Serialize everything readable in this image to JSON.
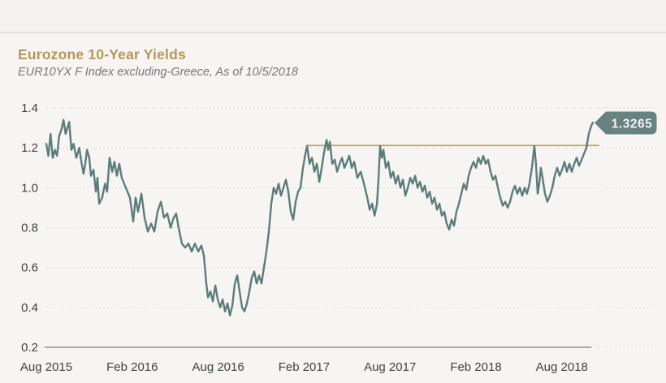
{
  "header": {
    "title": "Eurozone 10-Year Yields",
    "subtitle": "EUR10YX F Index excluding-Greece, As of 10/5/2018",
    "title_color": "#b5975a"
  },
  "chart_data": {
    "type": "line",
    "title": "Eurozone 10-Year Yields",
    "subtitle": "EUR10YX F Index excluding-Greece, As of 10/5/2018",
    "x_unit": "months since Aug 2015",
    "xlim": [
      0,
      38.3
    ],
    "ylim": [
      0.2,
      1.45
    ],
    "grid": "horizontal-dashed",
    "legend": "none",
    "yticks": [
      1.4,
      1.2,
      1.0,
      0.8,
      0.6,
      0.4,
      0.2
    ],
    "ytick_labels": [
      "1.4",
      "1.2",
      "1.0",
      "0.8",
      "0.6",
      "0.4",
      "0.2"
    ],
    "xticks": [
      0,
      6,
      12,
      18,
      24,
      30,
      36
    ],
    "xtick_labels": [
      "Aug 2015",
      "Feb 2016",
      "Aug 2016",
      "Feb 2017",
      "Aug 2017",
      "Feb 2018",
      "Aug 2018"
    ],
    "ref_line": {
      "value": 1.212,
      "color": "#c1a04e",
      "x_start_month": 18.2,
      "x_end_month": 38.6
    },
    "annotation": {
      "label": "1.3265",
      "value": 1.3265,
      "color": "#67827f",
      "text_color": "#f4f4f2"
    },
    "last_value": 1.3265,
    "series": [
      {
        "name": "EUR10YX F Index excluding-Greece",
        "color": "#5e7c7a",
        "points": [
          [
            0.0,
            1.22
          ],
          [
            0.15,
            1.16
          ],
          [
            0.3,
            1.27
          ],
          [
            0.45,
            1.15
          ],
          [
            0.6,
            1.19
          ],
          [
            0.75,
            1.16
          ],
          [
            0.9,
            1.26
          ],
          [
            1.05,
            1.29
          ],
          [
            1.2,
            1.34
          ],
          [
            1.35,
            1.27
          ],
          [
            1.6,
            1.33
          ],
          [
            1.75,
            1.19
          ],
          [
            1.9,
            1.22
          ],
          [
            2.1,
            1.15
          ],
          [
            2.3,
            1.2
          ],
          [
            2.45,
            1.13
          ],
          [
            2.6,
            1.07
          ],
          [
            2.72,
            1.12
          ],
          [
            2.84,
            1.19
          ],
          [
            3.0,
            1.15
          ],
          [
            3.12,
            1.06
          ],
          [
            3.3,
            1.09
          ],
          [
            3.46,
            0.98
          ],
          [
            3.57,
            1.05
          ],
          [
            3.69,
            0.92
          ],
          [
            3.9,
            0.95
          ],
          [
            4.1,
            1.02
          ],
          [
            4.25,
            0.98
          ],
          [
            4.42,
            1.15
          ],
          [
            4.6,
            1.08
          ],
          [
            4.76,
            1.13
          ],
          [
            4.93,
            1.06
          ],
          [
            5.1,
            1.12
          ],
          [
            5.27,
            1.05
          ],
          [
            5.56,
            1.0
          ],
          [
            5.84,
            0.95
          ],
          [
            6.07,
            0.83
          ],
          [
            6.24,
            0.95
          ],
          [
            6.41,
            0.88
          ],
          [
            6.64,
            0.97
          ],
          [
            6.86,
            0.85
          ],
          [
            7.09,
            0.78
          ],
          [
            7.32,
            0.82
          ],
          [
            7.54,
            0.78
          ],
          [
            7.77,
            0.88
          ],
          [
            8.0,
            0.93
          ],
          [
            8.22,
            0.85
          ],
          [
            8.45,
            0.87
          ],
          [
            8.68,
            0.8
          ],
          [
            8.9,
            0.85
          ],
          [
            9.07,
            0.87
          ],
          [
            9.24,
            0.8
          ],
          [
            9.47,
            0.72
          ],
          [
            9.7,
            0.7
          ],
          [
            9.93,
            0.72
          ],
          [
            10.15,
            0.68
          ],
          [
            10.38,
            0.72
          ],
          [
            10.61,
            0.68
          ],
          [
            10.83,
            0.71
          ],
          [
            11.0,
            0.66
          ],
          [
            11.17,
            0.52
          ],
          [
            11.29,
            0.45
          ],
          [
            11.46,
            0.48
          ],
          [
            11.63,
            0.43
          ],
          [
            11.8,
            0.51
          ],
          [
            11.97,
            0.44
          ],
          [
            12.14,
            0.4
          ],
          [
            12.31,
            0.44
          ],
          [
            12.48,
            0.38
          ],
          [
            12.65,
            0.42
          ],
          [
            12.82,
            0.36
          ],
          [
            12.99,
            0.41
          ],
          [
            13.16,
            0.52
          ],
          [
            13.33,
            0.56
          ],
          [
            13.5,
            0.48
          ],
          [
            13.67,
            0.4
          ],
          [
            13.84,
            0.38
          ],
          [
            14.01,
            0.42
          ],
          [
            14.18,
            0.48
          ],
          [
            14.35,
            0.55
          ],
          [
            14.52,
            0.58
          ],
          [
            14.69,
            0.52
          ],
          [
            14.86,
            0.56
          ],
          [
            15.03,
            0.52
          ],
          [
            15.2,
            0.6
          ],
          [
            15.37,
            0.68
          ],
          [
            15.54,
            0.78
          ],
          [
            15.71,
            0.92
          ],
          [
            15.88,
            1.0
          ],
          [
            16.05,
            0.97
          ],
          [
            16.22,
            1.02
          ],
          [
            16.39,
            0.96
          ],
          [
            16.56,
            1.0
          ],
          [
            16.73,
            1.04
          ],
          [
            16.9,
            0.98
          ],
          [
            17.07,
            0.88
          ],
          [
            17.24,
            0.84
          ],
          [
            17.41,
            0.93
          ],
          [
            17.58,
            0.98
          ],
          [
            17.75,
            1.0
          ],
          [
            17.92,
            1.1
          ],
          [
            18.09,
            1.17
          ],
          [
            18.21,
            1.21
          ],
          [
            18.38,
            1.12
          ],
          [
            18.55,
            1.15
          ],
          [
            18.72,
            1.08
          ],
          [
            18.89,
            1.12
          ],
          [
            19.06,
            1.03
          ],
          [
            19.23,
            1.1
          ],
          [
            19.4,
            1.18
          ],
          [
            19.57,
            1.24
          ],
          [
            19.68,
            1.19
          ],
          [
            19.8,
            1.23
          ],
          [
            19.97,
            1.12
          ],
          [
            20.14,
            1.14
          ],
          [
            20.31,
            1.08
          ],
          [
            20.48,
            1.12
          ],
          [
            20.65,
            1.15
          ],
          [
            20.82,
            1.1
          ],
          [
            20.99,
            1.13
          ],
          [
            21.16,
            1.16
          ],
          [
            21.33,
            1.1
          ],
          [
            21.5,
            1.13
          ],
          [
            21.72,
            1.05
          ],
          [
            21.95,
            1.08
          ],
          [
            22.18,
            1.02
          ],
          [
            22.41,
            0.95
          ],
          [
            22.58,
            0.89
          ],
          [
            22.75,
            0.92
          ],
          [
            22.92,
            0.86
          ],
          [
            23.09,
            0.92
          ],
          [
            23.2,
            1.05
          ],
          [
            23.31,
            1.21
          ],
          [
            23.43,
            1.15
          ],
          [
            23.54,
            1.19
          ],
          [
            23.71,
            1.1
          ],
          [
            23.88,
            1.13
          ],
          [
            24.05,
            1.05
          ],
          [
            24.22,
            1.08
          ],
          [
            24.39,
            1.02
          ],
          [
            24.56,
            1.06
          ],
          [
            24.73,
            1.0
          ],
          [
            24.9,
            1.04
          ],
          [
            25.07,
            0.96
          ],
          [
            25.24,
            1.0
          ],
          [
            25.41,
            1.05
          ],
          [
            25.58,
            1.02
          ],
          [
            25.75,
            1.06
          ],
          [
            25.92,
            1.0
          ],
          [
            26.09,
            1.03
          ],
          [
            26.26,
            0.98
          ],
          [
            26.43,
            1.01
          ],
          [
            26.6,
            0.95
          ],
          [
            26.77,
            0.98
          ],
          [
            26.94,
            0.92
          ],
          [
            27.11,
            0.95
          ],
          [
            27.28,
            0.89
          ],
          [
            27.45,
            0.92
          ],
          [
            27.62,
            0.86
          ],
          [
            27.79,
            0.88
          ],
          [
            27.96,
            0.82
          ],
          [
            28.13,
            0.79
          ],
          [
            28.3,
            0.84
          ],
          [
            28.47,
            0.81
          ],
          [
            28.64,
            0.88
          ],
          [
            28.81,
            0.92
          ],
          [
            28.98,
            0.97
          ],
          [
            29.15,
            1.02
          ],
          [
            29.32,
            0.99
          ],
          [
            29.49,
            1.06
          ],
          [
            29.66,
            1.1
          ],
          [
            29.83,
            1.13
          ],
          [
            30.0,
            1.1
          ],
          [
            30.17,
            1.15
          ],
          [
            30.34,
            1.12
          ],
          [
            30.51,
            1.16
          ],
          [
            30.68,
            1.12
          ],
          [
            30.85,
            1.14
          ],
          [
            31.02,
            1.08
          ],
          [
            31.19,
            1.04
          ],
          [
            31.36,
            1.06
          ],
          [
            31.53,
            1.0
          ],
          [
            31.7,
            0.95
          ],
          [
            31.87,
            0.91
          ],
          [
            32.04,
            0.93
          ],
          [
            32.21,
            0.9
          ],
          [
            32.38,
            0.93
          ],
          [
            32.55,
            0.98
          ],
          [
            32.72,
            1.01
          ],
          [
            32.89,
            0.97
          ],
          [
            33.06,
            1.0
          ],
          [
            33.23,
            0.96
          ],
          [
            33.4,
            1.0
          ],
          [
            33.57,
            0.97
          ],
          [
            33.74,
            1.02
          ],
          [
            33.91,
            1.1
          ],
          [
            34.08,
            1.21
          ],
          [
            34.19,
            1.12
          ],
          [
            34.31,
            0.97
          ],
          [
            34.42,
            1.02
          ],
          [
            34.53,
            1.1
          ],
          [
            34.65,
            1.05
          ],
          [
            34.82,
            0.97
          ],
          [
            34.99,
            0.93
          ],
          [
            35.16,
            0.96
          ],
          [
            35.33,
            1.0
          ],
          [
            35.5,
            1.06
          ],
          [
            35.67,
            1.1
          ],
          [
            35.84,
            1.06
          ],
          [
            36.01,
            1.09
          ],
          [
            36.18,
            1.13
          ],
          [
            36.35,
            1.08
          ],
          [
            36.52,
            1.12
          ],
          [
            36.69,
            1.08
          ],
          [
            36.86,
            1.12
          ],
          [
            37.03,
            1.15
          ],
          [
            37.2,
            1.11
          ],
          [
            37.37,
            1.14
          ],
          [
            37.54,
            1.17
          ],
          [
            37.71,
            1.2
          ],
          [
            37.88,
            1.27
          ],
          [
            38.05,
            1.31
          ],
          [
            38.16,
            1.3265
          ]
        ]
      }
    ]
  }
}
